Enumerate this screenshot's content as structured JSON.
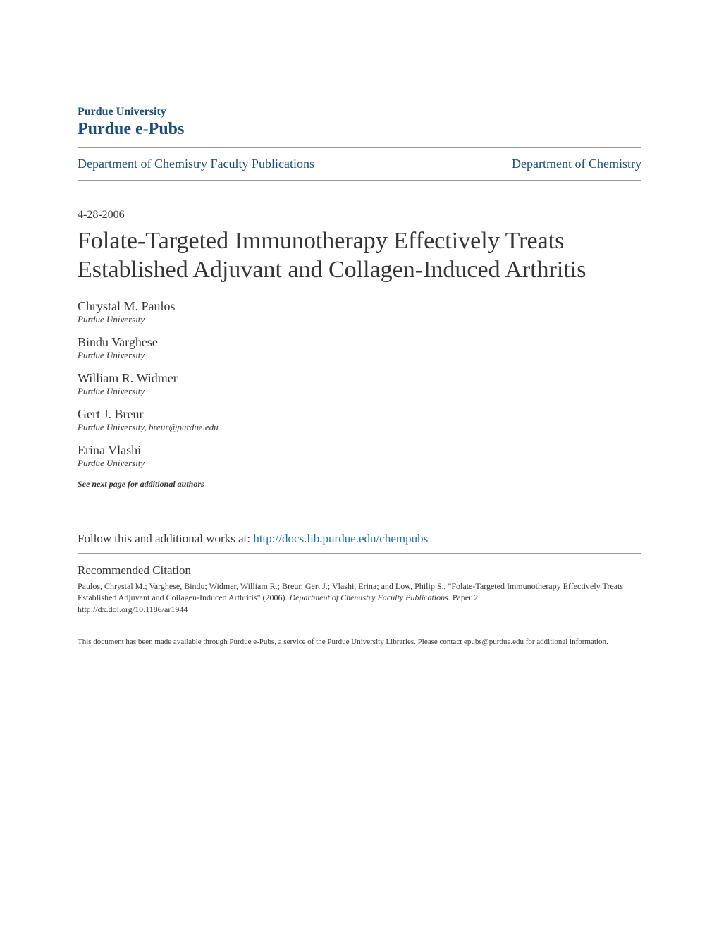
{
  "header": {
    "university": "Purdue University",
    "repository": "Purdue e-Pubs"
  },
  "nav": {
    "left": "Department of Chemistry Faculty Publications",
    "right": "Department of Chemistry"
  },
  "date": "4-28-2006",
  "title": "Folate-Targeted Immunotherapy Effectively Treats Established Adjuvant and Collagen-Induced Arthritis",
  "authors": [
    {
      "name": "Chrystal M. Paulos",
      "affiliation": "Purdue University"
    },
    {
      "name": "Bindu Varghese",
      "affiliation": "Purdue University"
    },
    {
      "name": "William R. Widmer",
      "affiliation": "Purdue University"
    },
    {
      "name": "Gert J. Breur",
      "affiliation": "Purdue University, breur@purdue.edu"
    },
    {
      "name": "Erina Vlashi",
      "affiliation": "Purdue University"
    }
  ],
  "see_next": "See next page for additional authors",
  "follow": {
    "prefix": "Follow this and additional works at: ",
    "link": "http://docs.lib.purdue.edu/chempubs"
  },
  "citation": {
    "heading": "Recommended Citation",
    "authors_text": "Paulos, Chrystal M.; Varghese, Bindu; Widmer, William R.; Breur, Gert J.; Vlashi, Erina; and Low, Philip S., \"Folate-Targeted Immunotherapy Effectively Treats Established Adjuvant and Collagen-Induced Arthritis\" (2006). ",
    "journal": "Department of Chemistry Faculty Publications.",
    "paper": " Paper 2.",
    "doi": "http://dx.doi.org/10.1186/ar1944"
  },
  "disclaimer": "This document has been made available through Purdue e-Pubs, a service of the Purdue University Libraries. Please contact epubs@purdue.edu for additional information.",
  "colors": {
    "link_blue": "#1a4d7a",
    "follow_link_blue": "#1a6db5",
    "text": "#333333",
    "divider": "#999999",
    "background": "#ffffff"
  }
}
